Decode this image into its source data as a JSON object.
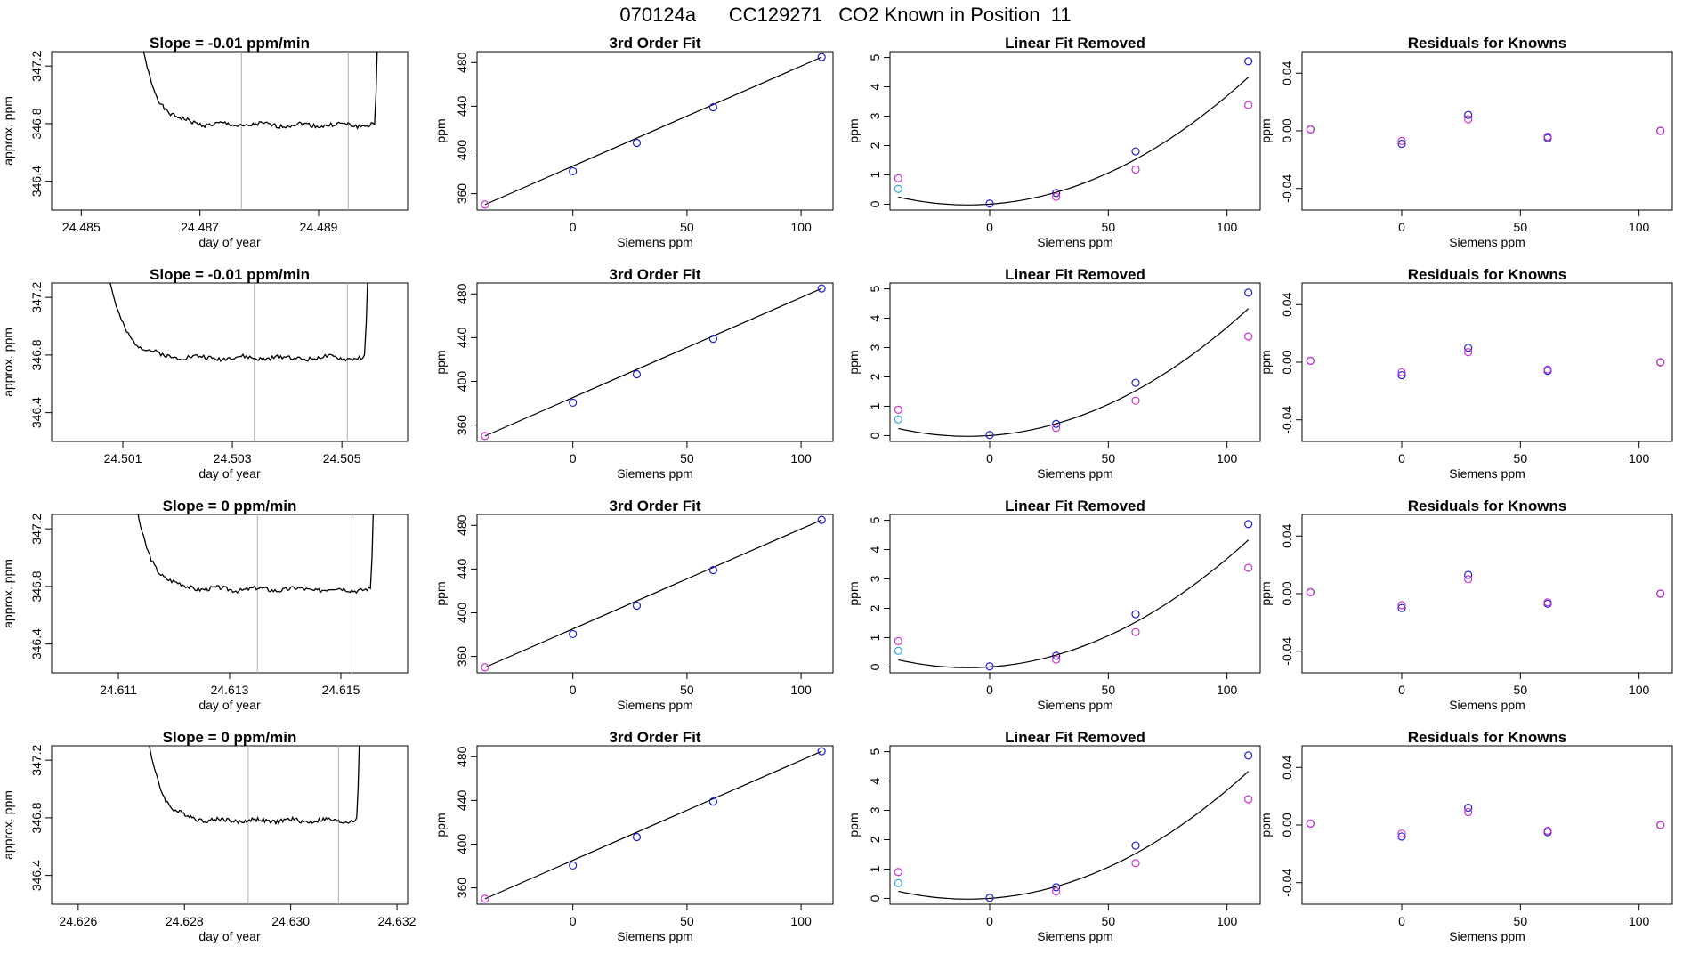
{
  "page_title": "070124a      CC129271   CO2 Known in Position  11",
  "colors": {
    "line": "#000000",
    "vline": "#b0b0b0",
    "blue": "#1f1fcc",
    "magenta": "#cc33cc",
    "cyan": "#33aadd",
    "red": "#dd4444"
  },
  "chart_data": [
    {
      "type": "line",
      "title": "Slope =  -0.01  ppm/min",
      "xlabel": "day of year",
      "ylabel": "approx. ppm",
      "xlim": [
        24.4845,
        24.4905
      ],
      "ylim": [
        346.2,
        347.3
      ],
      "xticks": [
        "24.485",
        "24.487",
        "24.489"
      ],
      "xtick_values": [
        24.485,
        24.487,
        24.489
      ],
      "yticks": [
        "346.4",
        "346.8",
        "347.2"
      ],
      "ytick_values": [
        346.4,
        346.8,
        347.2
      ],
      "vlines": [
        24.4877,
        24.4895
      ],
      "x_start": 24.4859,
      "x_end": 24.4901,
      "plateau": 346.79,
      "seed": 1
    },
    {
      "type": "line",
      "title": "3rd Order Fit",
      "xlabel": "Siemens ppm",
      "ylabel": "ppm",
      "xlim": [
        -42,
        114
      ],
      "ylim": [
        345,
        490
      ],
      "xticks": [
        "0",
        "50",
        "100"
      ],
      "xtick_values": [
        0,
        50,
        100
      ],
      "yticks": [
        "360",
        "400",
        "440",
        "480"
      ],
      "ytick_values": [
        360,
        400,
        440,
        480
      ],
      "points": [
        {
          "x": -38.5,
          "y": 350,
          "c": "magenta"
        },
        {
          "x": 0,
          "y": 380.5,
          "c": "blue"
        },
        {
          "x": 28,
          "y": 406.5,
          "c": "blue"
        },
        {
          "x": 61.5,
          "y": 439,
          "c": "blue"
        },
        {
          "x": 109,
          "y": 485,
          "c": "blue"
        }
      ]
    },
    {
      "type": "line",
      "title": "Linear Fit Removed",
      "xlabel": "Siemens ppm",
      "ylabel": "ppm",
      "xlim": [
        -42,
        114
      ],
      "ylim": [
        -0.2,
        5.2
      ],
      "xticks": [
        "0",
        "50",
        "100"
      ],
      "xtick_values": [
        0,
        50,
        100
      ],
      "yticks": [
        "0",
        "1",
        "2",
        "3",
        "4",
        "5"
      ],
      "ytick_values": [
        0,
        1,
        2,
        3,
        4,
        5
      ],
      "points": [
        {
          "x": -38.5,
          "y": 0.88,
          "c": "magenta"
        },
        {
          "x": -38.5,
          "y": 0.52,
          "c": "cyan"
        },
        {
          "x": 0,
          "y": 0.02,
          "c": "blue"
        },
        {
          "x": 28,
          "y": 0.38,
          "c": "blue"
        },
        {
          "x": 28,
          "y": 0.25,
          "c": "magenta"
        },
        {
          "x": 61.5,
          "y": 1.8,
          "c": "blue"
        },
        {
          "x": 61.5,
          "y": 1.18,
          "c": "magenta"
        },
        {
          "x": 109,
          "y": 4.87,
          "c": "blue"
        },
        {
          "x": 109,
          "y": 3.38,
          "c": "magenta"
        }
      ]
    },
    {
      "type": "scatter",
      "title": "Residuals for Knowns",
      "xlabel": "Siemens ppm",
      "ylabel": "ppm",
      "xlim": [
        -42,
        114
      ],
      "ylim": [
        -0.055,
        0.055
      ],
      "xticks": [
        "0",
        "50",
        "100"
      ],
      "xtick_values": [
        0,
        50,
        100
      ],
      "yticks": [
        "-0.04",
        "0.00",
        "0.04"
      ],
      "ytick_values": [
        -0.04,
        0,
        0.04
      ],
      "points": [
        {
          "x": -38.5,
          "y": 0.001,
          "c": "blue"
        },
        {
          "x": -38.5,
          "y": 0.001,
          "c": "magenta"
        },
        {
          "x": 0,
          "y": -0.009,
          "c": "blue"
        },
        {
          "x": 0,
          "y": -0.007,
          "c": "magenta"
        },
        {
          "x": 28,
          "y": 0.011,
          "c": "blue"
        },
        {
          "x": 28,
          "y": 0.008,
          "c": "magenta"
        },
        {
          "x": 61.5,
          "y": -0.005,
          "c": "blue"
        },
        {
          "x": 61.5,
          "y": -0.004,
          "c": "magenta"
        },
        {
          "x": 109,
          "y": 0.0,
          "c": "blue"
        },
        {
          "x": 109,
          "y": 0.0,
          "c": "magenta"
        }
      ]
    },
    {
      "type": "line",
      "title": "Slope =  -0.01  ppm/min",
      "xlabel": "day of year",
      "ylabel": "approx. ppm",
      "xlim": [
        24.4997,
        24.5062
      ],
      "ylim": [
        346.2,
        347.3
      ],
      "xticks": [
        "24.501",
        "24.503",
        "24.505"
      ],
      "xtick_values": [
        24.501,
        24.503,
        24.505
      ],
      "yticks": [
        "346.4",
        "346.8",
        "347.2"
      ],
      "ytick_values": [
        346.4,
        346.8,
        347.2
      ],
      "vlines": [
        24.5034,
        24.5051
      ],
      "x_start": 24.5006,
      "x_end": 24.5056,
      "plateau": 346.78,
      "seed": 2
    },
    {
      "type": "line",
      "title": "3rd Order Fit",
      "xlabel": "Siemens ppm",
      "ylabel": "ppm",
      "xlim": [
        -42,
        114
      ],
      "ylim": [
        345,
        490
      ],
      "xticks": [
        "0",
        "50",
        "100"
      ],
      "xtick_values": [
        0,
        50,
        100
      ],
      "yticks": [
        "360",
        "400",
        "440",
        "480"
      ],
      "ytick_values": [
        360,
        400,
        440,
        480
      ],
      "points": [
        {
          "x": -38.5,
          "y": 350,
          "c": "magenta"
        },
        {
          "x": 0,
          "y": 380.5,
          "c": "blue"
        },
        {
          "x": 28,
          "y": 406.5,
          "c": "blue"
        },
        {
          "x": 61.5,
          "y": 439,
          "c": "blue"
        },
        {
          "x": 109,
          "y": 485,
          "c": "blue"
        }
      ]
    },
    {
      "type": "line",
      "title": "Linear Fit Removed",
      "xlabel": "Siemens ppm",
      "ylabel": "ppm",
      "xlim": [
        -42,
        114
      ],
      "ylim": [
        -0.2,
        5.2
      ],
      "xticks": [
        "0",
        "50",
        "100"
      ],
      "xtick_values": [
        0,
        50,
        100
      ],
      "yticks": [
        "0",
        "1",
        "2",
        "3",
        "4",
        "5"
      ],
      "ytick_values": [
        0,
        1,
        2,
        3,
        4,
        5
      ],
      "points": [
        {
          "x": -38.5,
          "y": 0.88,
          "c": "magenta"
        },
        {
          "x": -38.5,
          "y": 0.55,
          "c": "cyan"
        },
        {
          "x": 0,
          "y": 0.02,
          "c": "blue"
        },
        {
          "x": 28,
          "y": 0.4,
          "c": "blue"
        },
        {
          "x": 28,
          "y": 0.26,
          "c": "magenta"
        },
        {
          "x": 61.5,
          "y": 1.8,
          "c": "blue"
        },
        {
          "x": 61.5,
          "y": 1.19,
          "c": "magenta"
        },
        {
          "x": 109,
          "y": 4.87,
          "c": "blue"
        },
        {
          "x": 109,
          "y": 3.38,
          "c": "magenta"
        }
      ]
    },
    {
      "type": "scatter",
      "title": "Residuals for Knowns",
      "xlabel": "Siemens ppm",
      "ylabel": "ppm",
      "xlim": [
        -42,
        114
      ],
      "ylim": [
        -0.055,
        0.055
      ],
      "xticks": [
        "0",
        "50",
        "100"
      ],
      "xtick_values": [
        0,
        50,
        100
      ],
      "yticks": [
        "-0.04",
        "0.00",
        "0.04"
      ],
      "ytick_values": [
        -0.04,
        0,
        0.04
      ],
      "points": [
        {
          "x": -38.5,
          "y": 0.001,
          "c": "blue"
        },
        {
          "x": -38.5,
          "y": 0.001,
          "c": "magenta"
        },
        {
          "x": 0,
          "y": -0.009,
          "c": "blue"
        },
        {
          "x": 0,
          "y": -0.007,
          "c": "magenta"
        },
        {
          "x": 28,
          "y": 0.01,
          "c": "blue"
        },
        {
          "x": 28,
          "y": 0.007,
          "c": "magenta"
        },
        {
          "x": 61.5,
          "y": -0.006,
          "c": "blue"
        },
        {
          "x": 61.5,
          "y": -0.005,
          "c": "magenta"
        },
        {
          "x": 109,
          "y": 0.0,
          "c": "blue"
        },
        {
          "x": 109,
          "y": 0.0,
          "c": "magenta"
        }
      ]
    },
    {
      "type": "line",
      "title": "Slope =  0  ppm/min",
      "xlabel": "day of year",
      "ylabel": "approx. ppm",
      "xlim": [
        24.6098,
        24.6162
      ],
      "ylim": [
        346.2,
        347.3
      ],
      "xticks": [
        "24.611",
        "24.613",
        "24.615"
      ],
      "xtick_values": [
        24.611,
        24.613,
        24.615
      ],
      "yticks": [
        "346.4",
        "346.8",
        "347.2"
      ],
      "ytick_values": [
        346.4,
        346.8,
        347.2
      ],
      "vlines": [
        24.6135,
        24.6152
      ],
      "x_start": 24.6112,
      "x_end": 24.6157,
      "plateau": 346.78,
      "seed": 3
    },
    {
      "type": "line",
      "title": "3rd Order Fit",
      "xlabel": "Siemens ppm",
      "ylabel": "ppm",
      "xlim": [
        -42,
        114
      ],
      "ylim": [
        345,
        490
      ],
      "xticks": [
        "0",
        "50",
        "100"
      ],
      "xtick_values": [
        0,
        50,
        100
      ],
      "yticks": [
        "360",
        "400",
        "440",
        "480"
      ],
      "ytick_values": [
        360,
        400,
        440,
        480
      ],
      "points": [
        {
          "x": -38.5,
          "y": 350,
          "c": "magenta"
        },
        {
          "x": 0,
          "y": 380.5,
          "c": "blue"
        },
        {
          "x": 28,
          "y": 406.5,
          "c": "blue"
        },
        {
          "x": 61.5,
          "y": 439,
          "c": "blue"
        },
        {
          "x": 109,
          "y": 485,
          "c": "blue"
        }
      ]
    },
    {
      "type": "line",
      "title": "Linear Fit Removed",
      "xlabel": "Siemens ppm",
      "ylabel": "ppm",
      "xlim": [
        -42,
        114
      ],
      "ylim": [
        -0.2,
        5.2
      ],
      "xticks": [
        "0",
        "50",
        "100"
      ],
      "xtick_values": [
        0,
        50,
        100
      ],
      "yticks": [
        "0",
        "1",
        "2",
        "3",
        "4",
        "5"
      ],
      "ytick_values": [
        0,
        1,
        2,
        3,
        4,
        5
      ],
      "points": [
        {
          "x": -38.5,
          "y": 0.88,
          "c": "magenta"
        },
        {
          "x": -38.5,
          "y": 0.55,
          "c": "cyan"
        },
        {
          "x": 0,
          "y": 0.02,
          "c": "blue"
        },
        {
          "x": 28,
          "y": 0.38,
          "c": "blue"
        },
        {
          "x": 28,
          "y": 0.25,
          "c": "magenta"
        },
        {
          "x": 61.5,
          "y": 1.8,
          "c": "blue"
        },
        {
          "x": 61.5,
          "y": 1.19,
          "c": "magenta"
        },
        {
          "x": 109,
          "y": 4.87,
          "c": "blue"
        },
        {
          "x": 109,
          "y": 3.38,
          "c": "magenta"
        }
      ]
    },
    {
      "type": "scatter",
      "title": "Residuals for Knowns",
      "xlabel": "Siemens ppm",
      "ylabel": "ppm",
      "xlim": [
        -42,
        114
      ],
      "ylim": [
        -0.055,
        0.055
      ],
      "xticks": [
        "0",
        "50",
        "100"
      ],
      "xtick_values": [
        0,
        50,
        100
      ],
      "yticks": [
        "-0.04",
        "0.00",
        "0.04"
      ],
      "ytick_values": [
        -0.04,
        0,
        0.04
      ],
      "points": [
        {
          "x": -38.5,
          "y": 0.001,
          "c": "blue"
        },
        {
          "x": -38.5,
          "y": 0.001,
          "c": "magenta"
        },
        {
          "x": 0,
          "y": -0.01,
          "c": "blue"
        },
        {
          "x": 0,
          "y": -0.008,
          "c": "magenta"
        },
        {
          "x": 28,
          "y": 0.013,
          "c": "blue"
        },
        {
          "x": 28,
          "y": 0.01,
          "c": "magenta"
        },
        {
          "x": 61.5,
          "y": -0.007,
          "c": "blue"
        },
        {
          "x": 61.5,
          "y": -0.006,
          "c": "magenta"
        },
        {
          "x": 109,
          "y": 0.0,
          "c": "blue"
        },
        {
          "x": 109,
          "y": 0.0,
          "c": "magenta"
        }
      ]
    },
    {
      "type": "line",
      "title": "Slope =  0  ppm/min",
      "xlabel": "day of year",
      "ylabel": "approx. ppm",
      "xlim": [
        24.6255,
        24.6322
      ],
      "ylim": [
        346.2,
        347.3
      ],
      "xticks": [
        "24.626",
        "24.628",
        "24.630",
        "24.632"
      ],
      "xtick_values": [
        24.626,
        24.628,
        24.63,
        24.632
      ],
      "yticks": [
        "346.4",
        "346.8",
        "347.2"
      ],
      "ytick_values": [
        346.4,
        346.8,
        347.2
      ],
      "vlines": [
        24.6292,
        24.6309
      ],
      "x_start": 24.6272,
      "x_end": 24.6314,
      "plateau": 346.78,
      "seed": 4
    },
    {
      "type": "line",
      "title": "3rd Order Fit",
      "xlabel": "Siemens ppm",
      "ylabel": "ppm",
      "xlim": [
        -42,
        114
      ],
      "ylim": [
        345,
        490
      ],
      "xticks": [
        "0",
        "50",
        "100"
      ],
      "xtick_values": [
        0,
        50,
        100
      ],
      "yticks": [
        "360",
        "400",
        "440",
        "480"
      ],
      "ytick_values": [
        360,
        400,
        440,
        480
      ],
      "points": [
        {
          "x": -38.5,
          "y": 350,
          "c": "magenta"
        },
        {
          "x": 0,
          "y": 380.5,
          "c": "blue"
        },
        {
          "x": 28,
          "y": 406.5,
          "c": "blue"
        },
        {
          "x": 61.5,
          "y": 439,
          "c": "blue"
        },
        {
          "x": 109,
          "y": 485,
          "c": "blue"
        }
      ]
    },
    {
      "type": "line",
      "title": "Linear Fit Removed",
      "xlabel": "Siemens ppm",
      "ylabel": "ppm",
      "xlim": [
        -42,
        114
      ],
      "ylim": [
        -0.2,
        5.2
      ],
      "xticks": [
        "0",
        "50",
        "100"
      ],
      "xtick_values": [
        0,
        50,
        100
      ],
      "yticks": [
        "0",
        "1",
        "2",
        "3",
        "4",
        "5"
      ],
      "ytick_values": [
        0,
        1,
        2,
        3,
        4,
        5
      ],
      "points": [
        {
          "x": -38.5,
          "y": 0.9,
          "c": "magenta"
        },
        {
          "x": -38.5,
          "y": 0.52,
          "c": "cyan"
        },
        {
          "x": 0,
          "y": 0.02,
          "c": "blue"
        },
        {
          "x": 28,
          "y": 0.38,
          "c": "blue"
        },
        {
          "x": 28,
          "y": 0.24,
          "c": "magenta"
        },
        {
          "x": 61.5,
          "y": 1.8,
          "c": "blue"
        },
        {
          "x": 61.5,
          "y": 1.2,
          "c": "magenta"
        },
        {
          "x": 109,
          "y": 4.87,
          "c": "blue"
        },
        {
          "x": 109,
          "y": 3.38,
          "c": "magenta"
        }
      ]
    },
    {
      "type": "scatter",
      "title": "Residuals for Knowns",
      "xlabel": "Siemens ppm",
      "ylabel": "ppm",
      "xlim": [
        -42,
        114
      ],
      "ylim": [
        -0.055,
        0.055
      ],
      "xticks": [
        "0",
        "50",
        "100"
      ],
      "xtick_values": [
        0,
        50,
        100
      ],
      "yticks": [
        "-0.04",
        "0.00",
        "0.04"
      ],
      "ytick_values": [
        -0.04,
        0,
        0.04
      ],
      "points": [
        {
          "x": -38.5,
          "y": 0.001,
          "c": "blue"
        },
        {
          "x": -38.5,
          "y": 0.001,
          "c": "magenta"
        },
        {
          "x": 0,
          "y": -0.008,
          "c": "blue"
        },
        {
          "x": 0,
          "y": -0.006,
          "c": "magenta"
        },
        {
          "x": 28,
          "y": 0.012,
          "c": "blue"
        },
        {
          "x": 28,
          "y": 0.009,
          "c": "magenta"
        },
        {
          "x": 61.5,
          "y": -0.005,
          "c": "blue"
        },
        {
          "x": 61.5,
          "y": -0.004,
          "c": "magenta"
        },
        {
          "x": 109,
          "y": 0.0,
          "c": "blue"
        },
        {
          "x": 109,
          "y": 0.0,
          "c": "magenta"
        }
      ]
    }
  ]
}
